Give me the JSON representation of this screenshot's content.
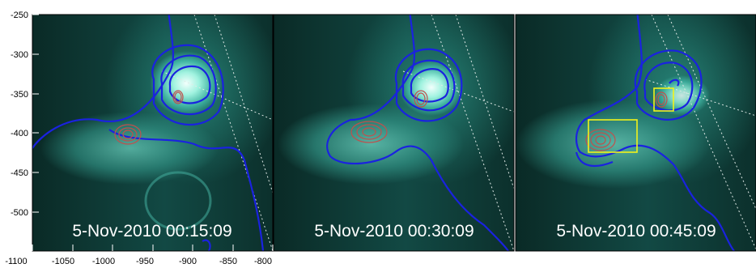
{
  "figure": {
    "y_axis_ticks": [
      "-250",
      "-300",
      "-350",
      "-400",
      "-450",
      "-500"
    ],
    "x_axis_ticks": [
      "-1100",
      "-1050",
      "-1000",
      "-950",
      "-900",
      "-850",
      "-800"
    ],
    "panels": [
      {
        "timestamp": "5-Nov-2010 00:15:09",
        "has_boxes": false
      },
      {
        "timestamp": "5-Nov-2010 00:30:09",
        "has_boxes": false
      },
      {
        "timestamp": "5-Nov-2010 00:45:09",
        "has_boxes": true
      }
    ],
    "colors": {
      "contour_outer": "#1a22e0",
      "contour_inner": "#c0504d",
      "box": "#f2f21a",
      "grid_line": "#dfe9e6",
      "label_text": "#ffffff"
    }
  }
}
